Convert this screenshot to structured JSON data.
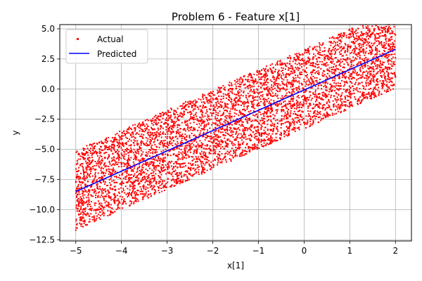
{
  "chart_data": {
    "type": "scatter",
    "title": "Problem 6 - Feature x[1]",
    "xlabel": "x[1]",
    "ylabel": "y",
    "xlim": [
      -5.35,
      2.35
    ],
    "ylim": [
      -12.6,
      5.35
    ],
    "x_ticks": [
      -5,
      -4,
      -3,
      -2,
      -1,
      0,
      1,
      2
    ],
    "y_ticks": [
      -12.5,
      -10.0,
      -7.5,
      -5.0,
      -2.5,
      0.0,
      2.5,
      5.0
    ],
    "x_tick_labels": [
      "−5",
      "−4",
      "−3",
      "−2",
      "−1",
      "0",
      "1",
      "2"
    ],
    "y_tick_labels": [
      "−12.5",
      "−10.0",
      "−7.5",
      "−5.0",
      "−2.5",
      "0.0",
      "2.5",
      "5.0"
    ],
    "grid": true,
    "legend_position": "upper-left",
    "series": [
      {
        "name": "Actual",
        "kind": "scatter",
        "color": "#ff0000",
        "approx_relation": "y ≈ 1.68·x + 0.0 ± 3.3 (dense uniform band)",
        "x_range": [
          -5,
          2
        ],
        "points": [
          [
            -5.0,
            -11.7
          ],
          [
            -4.95,
            -7.3
          ],
          [
            -4.9,
            -9.2
          ],
          [
            -4.8,
            -11.0
          ],
          [
            -4.7,
            -7.1
          ],
          [
            -4.6,
            -8.6
          ],
          [
            -4.5,
            -10.4
          ],
          [
            -4.4,
            -6.6
          ],
          [
            -4.3,
            -8.0
          ],
          [
            -4.2,
            -9.9
          ],
          [
            -4.0,
            -6.1
          ],
          [
            -3.9,
            -7.3
          ],
          [
            -3.8,
            -9.3
          ],
          [
            -3.7,
            -5.6
          ],
          [
            -3.6,
            -7.0
          ],
          [
            -3.5,
            -8.7
          ],
          [
            -3.4,
            -5.2
          ],
          [
            -3.3,
            -6.3
          ],
          [
            -3.2,
            -8.1
          ],
          [
            -3.0,
            -4.5
          ],
          [
            -2.9,
            -6.0
          ],
          [
            -2.8,
            -7.6
          ],
          [
            -2.7,
            -3.9
          ],
          [
            -2.6,
            -5.3
          ],
          [
            -2.5,
            -7.0
          ],
          [
            -2.4,
            -3.4
          ],
          [
            -2.3,
            -4.8
          ],
          [
            -2.2,
            -6.5
          ],
          [
            -2.0,
            -2.8
          ],
          [
            -1.9,
            -4.2
          ],
          [
            -1.8,
            -6.0
          ],
          [
            -1.7,
            -2.4
          ],
          [
            -1.6,
            -3.6
          ],
          [
            -1.5,
            -5.3
          ],
          [
            -1.4,
            -1.9
          ],
          [
            -1.3,
            -3.2
          ],
          [
            -1.2,
            -4.8
          ],
          [
            -1.0,
            -1.2
          ],
          [
            -0.9,
            -2.6
          ],
          [
            -0.8,
            -4.2
          ],
          [
            -0.7,
            -0.6
          ],
          [
            -0.6,
            -2.0
          ],
          [
            -0.5,
            -3.7
          ],
          [
            -0.4,
            -0.1
          ],
          [
            -0.3,
            -1.4
          ],
          [
            -0.2,
            -3.2
          ],
          [
            0.0,
            0.8
          ],
          [
            0.1,
            -0.9
          ],
          [
            0.2,
            -2.6
          ],
          [
            0.3,
            1.3
          ],
          [
            0.4,
            -0.3
          ],
          [
            0.5,
            -2.0
          ],
          [
            0.6,
            1.8
          ],
          [
            0.7,
            0.3
          ],
          [
            0.8,
            -1.4
          ],
          [
            1.0,
            2.5
          ],
          [
            1.1,
            0.9
          ],
          [
            1.2,
            -0.8
          ],
          [
            1.3,
            3.0
          ],
          [
            1.4,
            1.4
          ],
          [
            1.5,
            -0.2
          ],
          [
            1.6,
            3.6
          ],
          [
            1.7,
            2.0
          ],
          [
            1.8,
            0.3
          ],
          [
            1.9,
            4.3
          ],
          [
            2.0,
            1.0
          ],
          [
            2.0,
            4.5
          ],
          [
            2.0,
            2.6
          ]
        ]
      },
      {
        "name": "Predicted",
        "kind": "line",
        "color": "#0000ff",
        "x": [
          -5,
          2
        ],
        "y": [
          -8.5,
          3.3
        ]
      }
    ]
  }
}
